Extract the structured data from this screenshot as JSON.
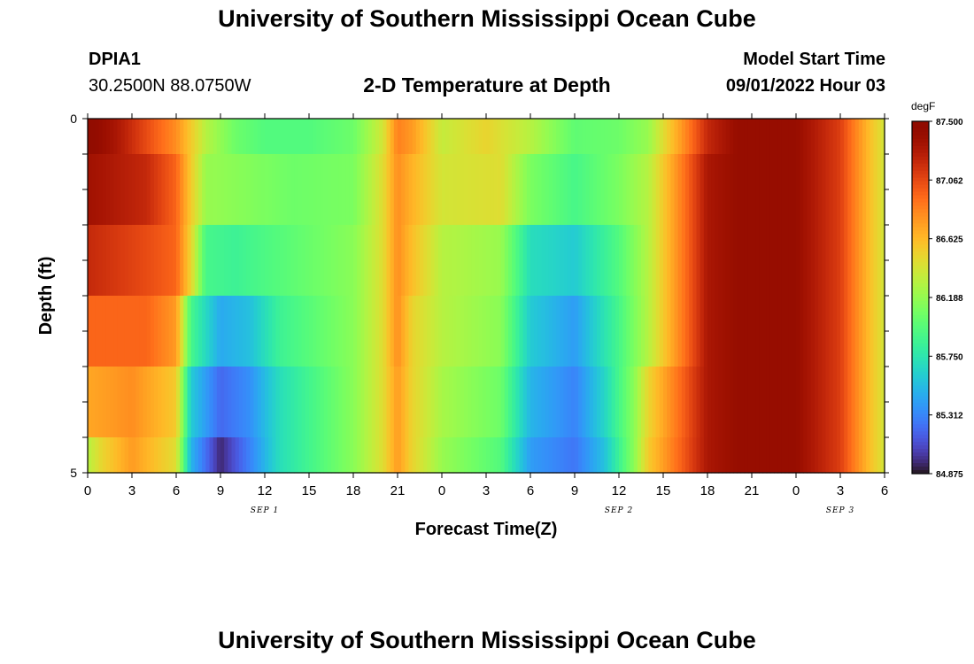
{
  "header": {
    "title": "University of Southern Mississippi Ocean Cube",
    "station": "DPIA1",
    "coords": "30.2500N  88.0750W",
    "subtitle": "2-D Temperature at Depth",
    "model_start_label": "Model Start Time",
    "model_start_value": "09/01/2022 Hour 03"
  },
  "footer": {
    "title": "University of Southern Mississippi Ocean Cube"
  },
  "chart_data": {
    "type": "heatmap",
    "title": "2-D Temperature at Depth",
    "xlabel": "Forecast Time(Z)",
    "ylabel": "Depth (ft)",
    "ylim": [
      0,
      5
    ],
    "y_tick_labels": [
      "0",
      "5"
    ],
    "x_tick_labels": [
      "0",
      "3",
      "6",
      "9",
      "12",
      "15",
      "18",
      "21",
      "0",
      "3",
      "6",
      "9",
      "12",
      "15",
      "18",
      "21",
      "0",
      "3",
      "6"
    ],
    "date_labels": [
      {
        "label": "SEP 1",
        "at_tick": 4
      },
      {
        "label": "SEP 2",
        "at_tick": 12
      },
      {
        "label": "SEP 3",
        "at_tick": 17
      }
    ],
    "x_hours": [
      0,
      54
    ],
    "colorbar": {
      "unit": "degF",
      "min": 84.875,
      "max": 87.5,
      "tick_labels": [
        "87.500",
        "87.062",
        "86.625",
        "86.188",
        "85.750",
        "85.312",
        "84.875"
      ],
      "colormap": "turbo"
    },
    "rows": [
      {
        "depth_range": [
          0,
          0.5
        ],
        "knots": [
          [
            0,
            87.48
          ],
          [
            2,
            87.3
          ],
          [
            4,
            87.05
          ],
          [
            6,
            86.8
          ],
          [
            8,
            86.3
          ],
          [
            10,
            86.05
          ],
          [
            12,
            85.95
          ],
          [
            15,
            85.95
          ],
          [
            18,
            86.05
          ],
          [
            20,
            86.4
          ],
          [
            21,
            86.85
          ],
          [
            22,
            86.75
          ],
          [
            24,
            86.35
          ],
          [
            27,
            86.5
          ],
          [
            30,
            86.3
          ],
          [
            33,
            86.0
          ],
          [
            36,
            86.05
          ],
          [
            38,
            86.2
          ],
          [
            42,
            87.2
          ],
          [
            44,
            87.4
          ],
          [
            48,
            87.4
          ],
          [
            51,
            87.1
          ],
          [
            53,
            86.6
          ],
          [
            54,
            86.4
          ]
        ]
      },
      {
        "depth_range": [
          0.5,
          1.5
        ],
        "knots": [
          [
            0,
            87.35
          ],
          [
            4,
            87.2
          ],
          [
            6,
            86.95
          ],
          [
            7,
            86.55
          ],
          [
            8,
            86.2
          ],
          [
            10,
            86.15
          ],
          [
            14,
            86.05
          ],
          [
            18,
            86.1
          ],
          [
            20,
            86.45
          ],
          [
            21,
            86.8
          ],
          [
            22,
            86.65
          ],
          [
            24,
            86.4
          ],
          [
            28,
            86.45
          ],
          [
            30,
            86.1
          ],
          [
            33,
            85.9
          ],
          [
            36,
            86.1
          ],
          [
            38,
            86.3
          ],
          [
            42,
            87.3
          ],
          [
            44,
            87.4
          ],
          [
            48,
            87.4
          ],
          [
            51,
            87.1
          ],
          [
            53,
            86.6
          ],
          [
            54,
            86.4
          ]
        ]
      },
      {
        "depth_range": [
          1.5,
          2.5
        ],
        "knots": [
          [
            0,
            87.2
          ],
          [
            4,
            87.05
          ],
          [
            6,
            86.95
          ],
          [
            7,
            86.5
          ],
          [
            8,
            85.9
          ],
          [
            10,
            85.85
          ],
          [
            14,
            86.0
          ],
          [
            18,
            86.15
          ],
          [
            20,
            86.45
          ],
          [
            21,
            86.8
          ],
          [
            22,
            86.6
          ],
          [
            24,
            86.3
          ],
          [
            28,
            86.2
          ],
          [
            30,
            85.7
          ],
          [
            33,
            85.6
          ],
          [
            36,
            85.95
          ],
          [
            38,
            86.3
          ],
          [
            42,
            87.3
          ],
          [
            44,
            87.4
          ],
          [
            48,
            87.4
          ],
          [
            51,
            87.1
          ],
          [
            53,
            86.6
          ],
          [
            54,
            86.4
          ]
        ]
      },
      {
        "depth_range": [
          2.5,
          3.5
        ],
        "knots": [
          [
            0,
            86.95
          ],
          [
            4,
            86.95
          ],
          [
            6,
            86.75
          ],
          [
            7,
            85.9
          ],
          [
            9,
            85.45
          ],
          [
            11,
            85.55
          ],
          [
            13,
            85.85
          ],
          [
            18,
            86.15
          ],
          [
            20,
            86.45
          ],
          [
            21,
            86.8
          ],
          [
            22,
            86.5
          ],
          [
            24,
            86.3
          ],
          [
            28,
            86.15
          ],
          [
            30,
            85.6
          ],
          [
            33,
            85.4
          ],
          [
            36,
            85.9
          ],
          [
            38,
            86.3
          ],
          [
            42,
            87.3
          ],
          [
            44,
            87.4
          ],
          [
            48,
            87.4
          ],
          [
            51,
            87.1
          ],
          [
            53,
            86.6
          ],
          [
            54,
            86.4
          ]
        ]
      },
      {
        "depth_range": [
          3.5,
          4.5
        ],
        "knots": [
          [
            0,
            86.7
          ],
          [
            3,
            86.8
          ],
          [
            6,
            86.55
          ],
          [
            7,
            85.6
          ],
          [
            9,
            85.2
          ],
          [
            11,
            85.35
          ],
          [
            13,
            85.7
          ],
          [
            18,
            86.15
          ],
          [
            20,
            86.45
          ],
          [
            21,
            86.75
          ],
          [
            22,
            86.5
          ],
          [
            24,
            86.25
          ],
          [
            28,
            86.05
          ],
          [
            30,
            85.5
          ],
          [
            33,
            85.3
          ],
          [
            35,
            85.65
          ],
          [
            37,
            86.15
          ],
          [
            38,
            86.5
          ],
          [
            42,
            87.3
          ],
          [
            44,
            87.4
          ],
          [
            48,
            87.4
          ],
          [
            51,
            87.1
          ],
          [
            53,
            86.6
          ],
          [
            54,
            86.4
          ]
        ]
      },
      {
        "depth_range": [
          4.5,
          5
        ],
        "knots": [
          [
            0,
            86.3
          ],
          [
            1,
            86.5
          ],
          [
            3,
            86.75
          ],
          [
            6,
            86.45
          ],
          [
            7,
            85.5
          ],
          [
            9,
            84.95
          ],
          [
            11,
            85.3
          ],
          [
            13,
            85.7
          ],
          [
            18,
            86.15
          ],
          [
            20,
            86.45
          ],
          [
            21,
            86.75
          ],
          [
            22,
            86.5
          ],
          [
            24,
            86.2
          ],
          [
            28,
            85.95
          ],
          [
            30,
            85.4
          ],
          [
            33,
            85.25
          ],
          [
            35,
            85.55
          ],
          [
            37,
            86.15
          ],
          [
            38,
            86.55
          ],
          [
            42,
            87.3
          ],
          [
            44,
            87.4
          ],
          [
            48,
            87.4
          ],
          [
            51,
            87.1
          ],
          [
            53,
            86.6
          ],
          [
            54,
            86.4
          ]
        ]
      }
    ]
  }
}
